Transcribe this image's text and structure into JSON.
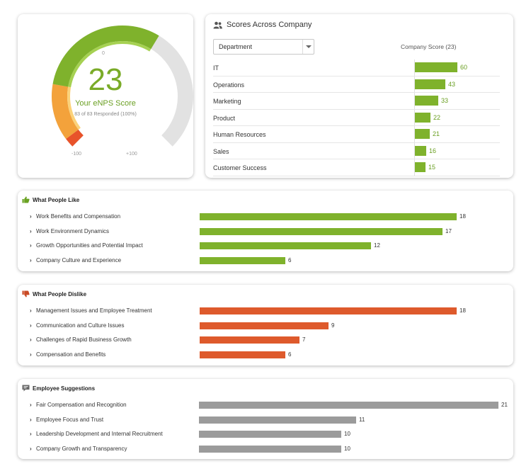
{
  "colors": {
    "green": "#7fb22c",
    "orange": "#de5a2c",
    "gray": "#9b9b9b",
    "text_green": "#6a9f22"
  },
  "gauge": {
    "score": "23",
    "title": "Your eNPS Score",
    "subtitle": "83 of 83 Responded (100%)",
    "tick_top": "0",
    "tick_left": "-100",
    "tick_right": "+100",
    "min": -100,
    "max": 100,
    "value": 23
  },
  "scores": {
    "title": "Scores Across Company",
    "title_icon": "people-icon",
    "select_value": "Department",
    "column_label": "Company Score (23)",
    "max": 60,
    "rows": [
      {
        "name": "IT",
        "value": 60
      },
      {
        "name": "Operations",
        "value": 43
      },
      {
        "name": "Marketing",
        "value": 33
      },
      {
        "name": "Product",
        "value": 22
      },
      {
        "name": "Human Resources",
        "value": 21
      },
      {
        "name": "Sales",
        "value": 16
      },
      {
        "name": "Customer Success",
        "value": 15
      }
    ]
  },
  "likes": {
    "title": "What People Like",
    "icon": "thumbs-up-icon",
    "color": "#7fb22c",
    "max": 18,
    "items": [
      {
        "label": "Work Benefits and Compensation",
        "value": 18
      },
      {
        "label": "Work Environment Dynamics",
        "value": 17
      },
      {
        "label": "Growth Opportunities and Potential Impact",
        "value": 12
      },
      {
        "label": "Company Culture and Experience",
        "value": 6
      }
    ]
  },
  "dislikes": {
    "title": "What People Dislike",
    "icon": "thumbs-down-icon",
    "color": "#de5a2c",
    "max": 18,
    "items": [
      {
        "label": "Management Issues and Employee Treatment",
        "value": 18
      },
      {
        "label": "Communication and Culture Issues",
        "value": 9
      },
      {
        "label": "Challenges of Rapid Business Growth",
        "value": 7
      },
      {
        "label": "Compensation and Benefits",
        "value": 6
      }
    ]
  },
  "suggestions": {
    "title": "Employee Suggestions",
    "icon": "speech-bubble-icon",
    "color": "#9b9b9b",
    "max": 21,
    "items": [
      {
        "label": "Fair Compensation and Recognition",
        "value": 21
      },
      {
        "label": "Employee Focus and Trust",
        "value": 11
      },
      {
        "label": "Leadership Development and Internal Recruitment",
        "value": 10
      },
      {
        "label": "Company Growth and Transparency",
        "value": 10
      }
    ]
  }
}
